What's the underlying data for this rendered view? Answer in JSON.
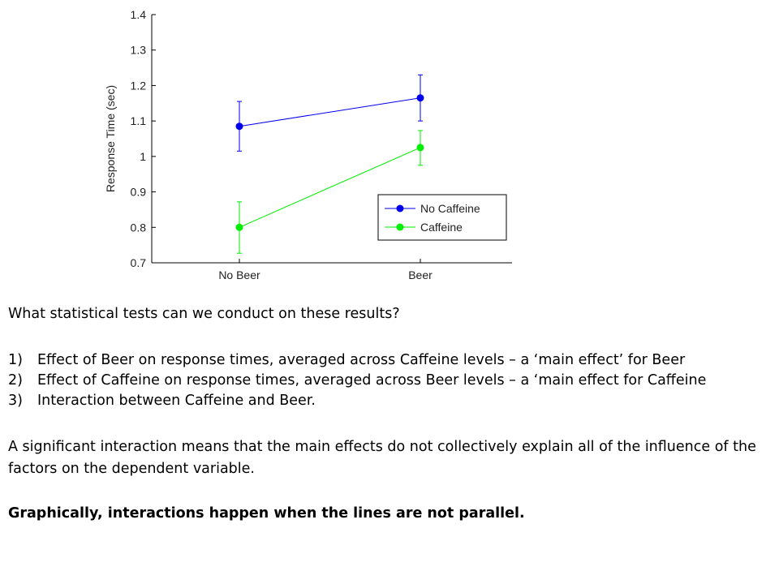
{
  "chart_data": {
    "type": "line",
    "categories": [
      "No Beer",
      "Beer"
    ],
    "ylabel": "Response Time (sec)",
    "ylim": [
      0.7,
      1.4
    ],
    "yticks": [
      "0.7",
      "0.8",
      "0.9",
      "1",
      "1.1",
      "1.2",
      "1.3",
      "1.4"
    ],
    "grid": false,
    "legend": "lower-right",
    "series": [
      {
        "name": "No Caffeine",
        "color": "#0000ee",
        "values": [
          1.085,
          1.165
        ],
        "err_low": [
          1.015,
          1.1
        ],
        "err_high": [
          1.155,
          1.23
        ]
      },
      {
        "name": "Caffeine",
        "color": "#00ee00",
        "values": [
          0.8,
          1.025
        ],
        "err_low": [
          0.727,
          0.975
        ],
        "err_high": [
          0.872,
          1.073
        ]
      }
    ]
  },
  "text": {
    "question": "What statistical tests can we conduct on these results?",
    "points": [
      {
        "num": "1)",
        "text": "Effect of Beer on response times, averaged across Caffeine levels – a ‘main effect’ for Beer"
      },
      {
        "num": "2)",
        "text": "Effect of Caffeine on response times, averaged across Beer levels – a ‘main effect for Caffeine"
      },
      {
        "num": "3)",
        "text": "Interaction between Caffeine and Beer."
      }
    ],
    "note": "A significant interaction means that the main effects do not collectively explain all of the influence of the factors on the dependent variable.",
    "conclusion": "Graphically, interactions happen when the lines are not parallel."
  }
}
